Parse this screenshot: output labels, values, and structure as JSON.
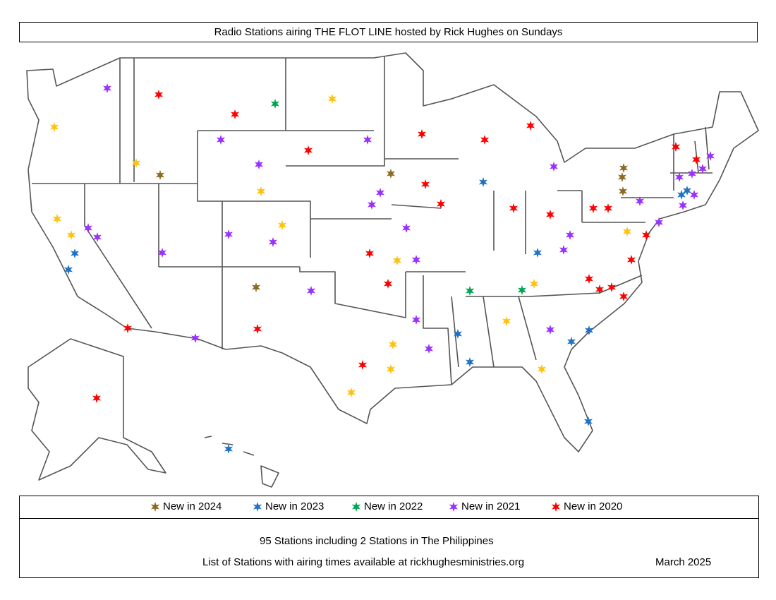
{
  "title": "Radio Stations airing THE FLOT LINE hosted by Rick Hughes on Sundays",
  "legend": [
    {
      "label": "New in 2024",
      "color": "#8B6B23"
    },
    {
      "label": "New in 2023",
      "color": "#1F73C4"
    },
    {
      "label": "New in 2022",
      "color": "#00A651"
    },
    {
      "label": "New in 2021",
      "color": "#9B30FF"
    },
    {
      "label": "New in 2020",
      "color": "#FF0000"
    }
  ],
  "default_color": "#FFC20E",
  "info": {
    "stations_count": "95 Stations including 2 Stations in The Philippines",
    "list_line": "List of Stations with airing times available at rickhughesministries.org",
    "date": "March 2025"
  }
}
